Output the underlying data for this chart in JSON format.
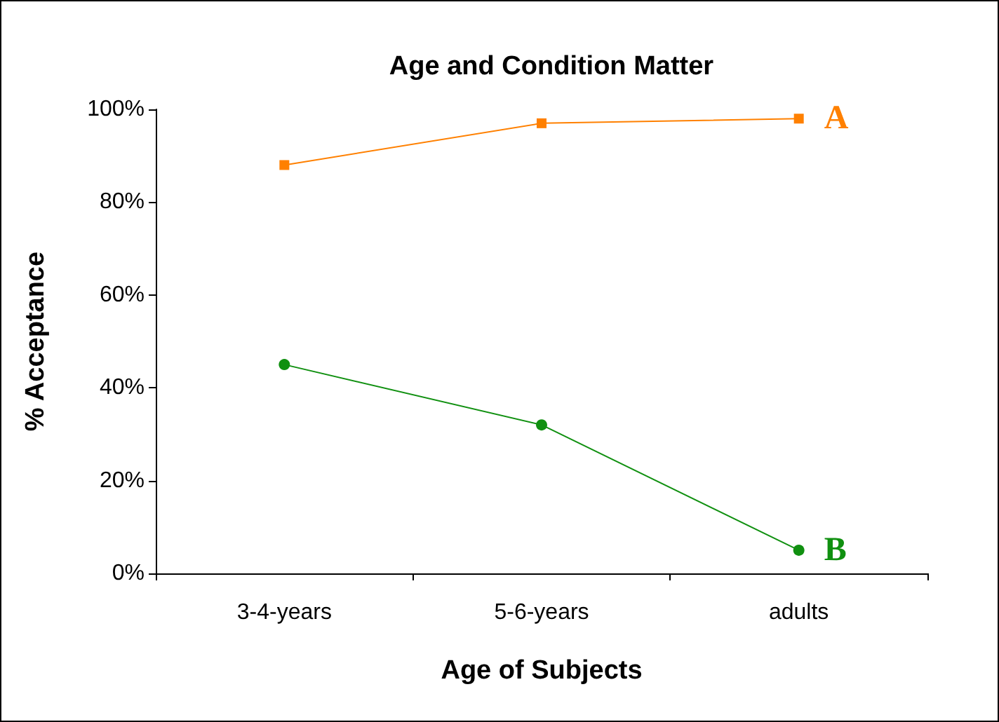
{
  "chart_data": {
    "type": "line",
    "title": "Age and Condition Matter",
    "xlabel": "Age of Subjects",
    "ylabel": "% Acceptance",
    "categories": [
      "3-4-years",
      "5-6-years",
      "adults"
    ],
    "series": [
      {
        "name": "A",
        "color": "#ff8000",
        "marker": "square",
        "values": [
          88,
          97,
          98
        ]
      },
      {
        "name": "B",
        "color": "#109010",
        "marker": "circle",
        "values": [
          45,
          32,
          5
        ]
      }
    ],
    "ylim": [
      0,
      100
    ],
    "yticks": [
      {
        "value": 0,
        "label": "0%"
      },
      {
        "value": 20,
        "label": "20%"
      },
      {
        "value": 40,
        "label": "40%"
      },
      {
        "value": 60,
        "label": "60%"
      },
      {
        "value": 80,
        "label": "80%"
      },
      {
        "value": 100,
        "label": "100%"
      }
    ],
    "grid": false,
    "legend": false
  }
}
